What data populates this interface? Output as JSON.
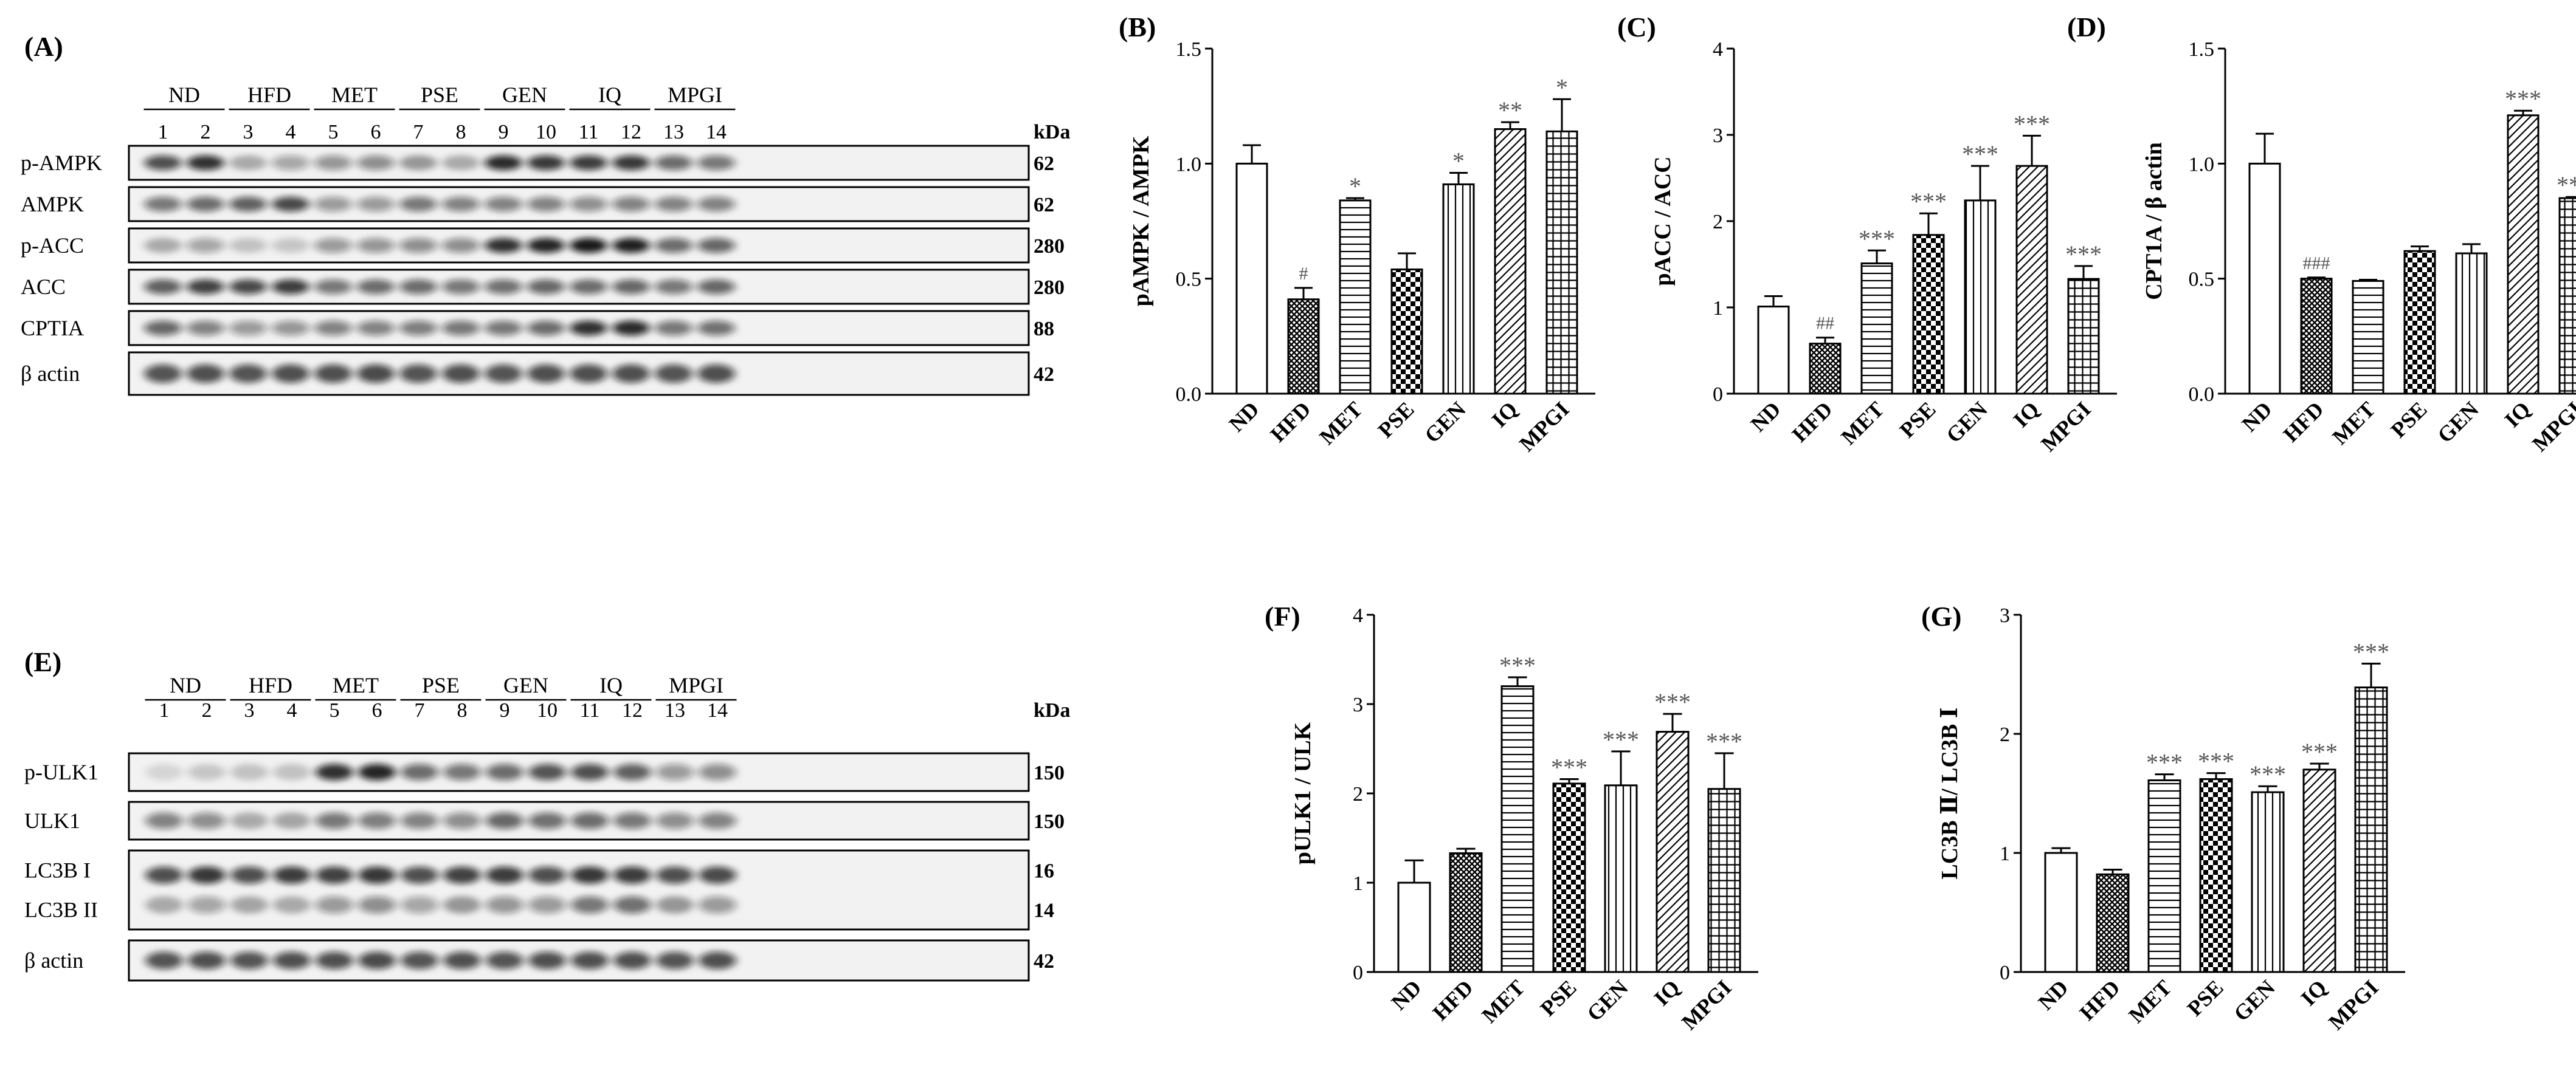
{
  "blot_A": {
    "panel_label": "(A)",
    "groups": [
      "ND",
      "HFD",
      "MET",
      "PSE",
      "GEN",
      "IQ",
      "MPGI"
    ],
    "lanes": [
      "1",
      "2",
      "3",
      "4",
      "5",
      "6",
      "7",
      "8",
      "9",
      "10",
      "11",
      "12",
      "13",
      "14"
    ],
    "kda_header": "kDa",
    "rows": [
      {
        "label": "p-AMPK",
        "kda": "62",
        "intensity": [
          0.72,
          0.85,
          0.3,
          0.35,
          0.42,
          0.45,
          0.38,
          0.3,
          0.88,
          0.82,
          0.8,
          0.82,
          0.6,
          0.55
        ]
      },
      {
        "label": "AMPK",
        "kda": "62",
        "intensity": [
          0.55,
          0.6,
          0.65,
          0.75,
          0.4,
          0.4,
          0.55,
          0.5,
          0.5,
          0.5,
          0.45,
          0.5,
          0.5,
          0.5
        ]
      },
      {
        "label": "p-ACC",
        "kda": "280",
        "intensity": [
          0.3,
          0.35,
          0.2,
          0.18,
          0.4,
          0.42,
          0.45,
          0.45,
          0.85,
          0.9,
          0.95,
          0.92,
          0.6,
          0.62
        ]
      },
      {
        "label": "ACC",
        "kda": "280",
        "intensity": [
          0.65,
          0.78,
          0.75,
          0.8,
          0.55,
          0.6,
          0.6,
          0.55,
          0.58,
          0.62,
          0.6,
          0.62,
          0.55,
          0.62
        ]
      },
      {
        "label": "CPTIA",
        "kda": "88",
        "intensity": [
          0.62,
          0.5,
          0.4,
          0.42,
          0.5,
          0.5,
          0.52,
          0.55,
          0.55,
          0.6,
          0.85,
          0.88,
          0.55,
          0.58
        ]
      },
      {
        "label": "β actin",
        "kda": "42",
        "intensity": [
          0.7,
          0.72,
          0.7,
          0.72,
          0.72,
          0.74,
          0.7,
          0.72,
          0.7,
          0.72,
          0.72,
          0.72,
          0.7,
          0.72
        ]
      }
    ]
  },
  "blot_E": {
    "panel_label": "(E)",
    "groups": [
      "ND",
      "HFD",
      "MET",
      "PSE",
      "GEN",
      "IQ",
      "MPGI"
    ],
    "lanes": [
      "1",
      "2",
      "3",
      "4",
      "5",
      "6",
      "7",
      "8",
      "9",
      "10",
      "11",
      "12",
      "13",
      "14"
    ],
    "kda_header": "kDa",
    "rows": [
      {
        "label": "p-ULK1",
        "kda": "150",
        "intensity": [
          0.12,
          0.18,
          0.2,
          0.2,
          0.85,
          0.9,
          0.6,
          0.55,
          0.6,
          0.7,
          0.72,
          0.65,
          0.4,
          0.45
        ]
      },
      {
        "label": "ULK1",
        "kda": "150",
        "intensity": [
          0.5,
          0.45,
          0.3,
          0.32,
          0.55,
          0.52,
          0.5,
          0.45,
          0.62,
          0.58,
          0.6,
          0.55,
          0.45,
          0.5
        ]
      },
      {
        "label": "LC3B I",
        "kda": "16",
        "intensity": [
          0.72,
          0.82,
          0.72,
          0.8,
          0.78,
          0.82,
          0.72,
          0.78,
          0.8,
          0.72,
          0.82,
          0.8,
          0.72,
          0.74
        ]
      },
      {
        "label": "LC3B II",
        "kda": "14",
        "intensity": [
          0.3,
          0.35,
          0.32,
          0.3,
          0.4,
          0.45,
          0.35,
          0.38,
          0.42,
          0.4,
          0.55,
          0.58,
          0.38,
          0.4
        ]
      },
      {
        "label": "β actin",
        "kda": "42",
        "intensity": [
          0.7,
          0.72,
          0.7,
          0.72,
          0.72,
          0.74,
          0.7,
          0.72,
          0.7,
          0.72,
          0.72,
          0.72,
          0.7,
          0.72
        ]
      }
    ]
  },
  "chart_data": [
    {
      "panel": "(B)",
      "type": "bar",
      "categories": [
        "ND",
        "HFD",
        "MET",
        "PSE",
        "GEN",
        "IQ",
        "MPGI"
      ],
      "values": [
        1.0,
        0.41,
        0.84,
        0.54,
        0.91,
        1.15,
        1.14
      ],
      "errors": [
        0.08,
        0.05,
        0.01,
        0.07,
        0.05,
        0.03,
        0.14
      ],
      "annotations": [
        "",
        "#",
        "*",
        "",
        "*",
        "**",
        "*"
      ],
      "ylabel": "pAMPK / AMPK",
      "ylim": [
        0,
        1.5
      ],
      "yticks": [
        "0.0",
        "0.5",
        "1.0",
        "1.5"
      ]
    },
    {
      "panel": "(C)",
      "type": "bar",
      "categories": [
        "ND",
        "HFD",
        "MET",
        "PSE",
        "GEN",
        "IQ",
        "MPGI"
      ],
      "values": [
        1.01,
        0.58,
        1.51,
        1.84,
        2.24,
        2.64,
        1.33
      ],
      "errors": [
        0.12,
        0.07,
        0.15,
        0.25,
        0.4,
        0.35,
        0.15
      ],
      "annotations": [
        "",
        "##",
        "***",
        "***",
        "***",
        "***",
        "***"
      ],
      "ylabel": "pACC / ACC",
      "ylim": [
        0,
        4
      ],
      "yticks": [
        "0",
        "1",
        "2",
        "3",
        "4"
      ]
    },
    {
      "panel": "(D)",
      "type": "bar",
      "categories": [
        "ND",
        "HFD",
        "MET",
        "PSE",
        "GEN",
        "IQ",
        "MPGI"
      ],
      "values": [
        1.0,
        0.5,
        0.49,
        0.62,
        0.61,
        1.21,
        0.85
      ],
      "errors": [
        0.13,
        0.005,
        0.005,
        0.02,
        0.04,
        0.02,
        0.005
      ],
      "annotations": [
        "",
        "###",
        "",
        "",
        "",
        "***",
        "***"
      ],
      "ylabel": "CPT1A / β actin",
      "ylim": [
        0,
        1.5
      ],
      "yticks": [
        "0.0",
        "0.5",
        "1.0",
        "1.5"
      ]
    },
    {
      "panel": "(F)",
      "type": "bar",
      "categories": [
        "ND",
        "HFD",
        "MET",
        "PSE",
        "GEN",
        "IQ",
        "MPGI"
      ],
      "values": [
        1.0,
        1.33,
        3.2,
        2.11,
        2.09,
        2.69,
        2.05
      ],
      "errors": [
        0.25,
        0.05,
        0.1,
        0.05,
        0.38,
        0.2,
        0.4
      ],
      "annotations": [
        "",
        "",
        "***",
        "***",
        "***",
        "***",
        "***"
      ],
      "ylabel": "pULK1 / ULK",
      "ylim": [
        0,
        4
      ],
      "yticks": [
        "0",
        "1",
        "2",
        "3",
        "4"
      ]
    },
    {
      "panel": "(G)",
      "type": "bar",
      "categories": [
        "ND",
        "HFD",
        "MET",
        "PSE",
        "GEN",
        "IQ",
        "MPGI"
      ],
      "values": [
        1.0,
        0.82,
        1.61,
        1.62,
        1.51,
        1.7,
        2.39
      ],
      "errors": [
        0.04,
        0.04,
        0.05,
        0.05,
        0.05,
        0.05,
        0.2
      ],
      "annotations": [
        "",
        "",
        "***",
        "***",
        "***",
        "***",
        "***"
      ],
      "ylabel": "LC3B Ⅱ/ LC3B Ⅰ",
      "ylim": [
        0,
        3
      ],
      "yticks": [
        "0",
        "1",
        "2",
        "3"
      ]
    }
  ],
  "colors": {
    "ink": "#000000",
    "background": "#ffffff",
    "membrane": "#f2f2f2",
    "band": "#111111",
    "annotation_grey": "#555555"
  },
  "patterns": [
    "open",
    "crosshatch-dense",
    "horizontal",
    "checker",
    "vertical",
    "diagonal",
    "grid"
  ]
}
